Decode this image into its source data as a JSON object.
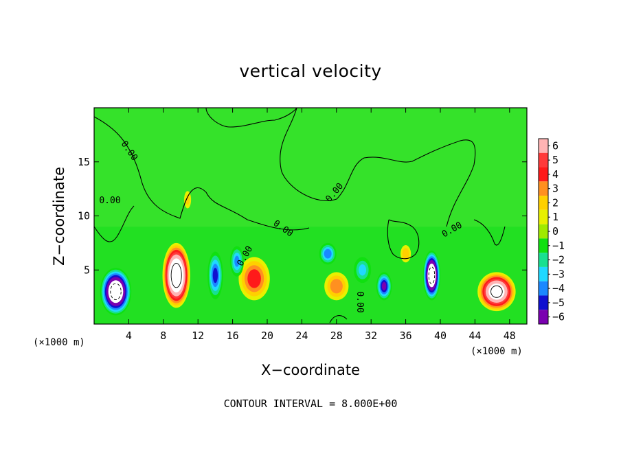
{
  "chart_data": {
    "type": "heatmap",
    "title": "vertical velocity",
    "xlabel": "X−coordinate",
    "ylabel": "Z−coordinate",
    "x_unit_label": "(×1000 m)",
    "x_ticks": [
      "4",
      "8",
      "12",
      "16",
      "20",
      "24",
      "28",
      "32",
      "36",
      "40",
      "44",
      "48"
    ],
    "y_ticks": [
      "5",
      "10",
      "15"
    ],
    "xlim": [
      0,
      50
    ],
    "ylim": [
      0,
      20
    ],
    "colorbar": {
      "levels": [
        "6",
        "5",
        "4",
        "3",
        "2",
        "1",
        "0",
        "−1",
        "−2",
        "−3",
        "−4",
        "−5",
        "−6"
      ],
      "range": [
        -6,
        6
      ],
      "colors": [
        "#ffb4b4",
        "#ff3a3a",
        "#ff1a1a",
        "#ff9020",
        "#ffd000",
        "#e8f000",
        "#a0ea00",
        "#10e010",
        "#18e090",
        "#20d8ff",
        "#1a88ff",
        "#1010d0",
        "#7a00b0"
      ]
    },
    "contour_labels": [
      "0.00",
      "0.00",
      "0.00",
      "0.00",
      "0.00",
      "0.00",
      "0.00"
    ],
    "contour_interval_note": "CONTOUR INTERVAL = 8.000E+00",
    "features": [
      {
        "kind": "updraft",
        "x": 9.5,
        "z": 4.5,
        "sx": 1.6,
        "sz": 3.0,
        "w": 12
      },
      {
        "kind": "updraft",
        "x": 46.5,
        "z": 3.0,
        "sx": 2.2,
        "sz": 1.8,
        "w": 10
      },
      {
        "kind": "updraft",
        "x": 18.5,
        "z": 4.2,
        "sx": 1.8,
        "sz": 2.0,
        "w": 4.5
      },
      {
        "kind": "updraft",
        "x": 28.0,
        "z": 3.5,
        "sx": 1.4,
        "sz": 1.3,
        "w": 3.5
      },
      {
        "kind": "updraft",
        "x": 36.0,
        "z": 6.5,
        "sx": 0.6,
        "sz": 0.8,
        "w": 2.5
      },
      {
        "kind": "updraft",
        "x": 10.8,
        "z": 11.5,
        "sx": 0.4,
        "sz": 0.8,
        "w": 2.0
      },
      {
        "kind": "downdraft",
        "x": 2.5,
        "z": 3.0,
        "sx": 1.8,
        "sz": 2.2,
        "w": -11
      },
      {
        "kind": "downdraft",
        "x": 39.0,
        "z": 4.5,
        "sx": 1.0,
        "sz": 2.3,
        "w": -11
      },
      {
        "kind": "downdraft",
        "x": 14.0,
        "z": 4.5,
        "sx": 0.9,
        "sz": 2.2,
        "w": -5
      },
      {
        "kind": "downdraft",
        "x": 16.5,
        "z": 5.8,
        "sx": 0.8,
        "sz": 1.4,
        "w": -4
      },
      {
        "kind": "downdraft",
        "x": 27.0,
        "z": 6.5,
        "sx": 1.0,
        "sz": 1.0,
        "w": -4.5
      },
      {
        "kind": "downdraft",
        "x": 33.5,
        "z": 3.5,
        "sx": 0.9,
        "sz": 1.3,
        "w": -6
      },
      {
        "kind": "downdraft",
        "x": 31.0,
        "z": 5.0,
        "sx": 1.0,
        "sz": 1.2,
        "w": -3
      }
    ]
  }
}
